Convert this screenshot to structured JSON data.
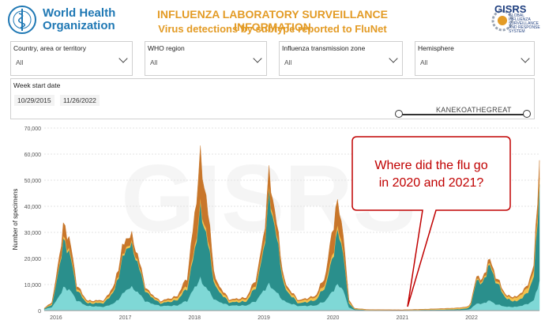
{
  "header": {
    "who_logo_text": "World Health\nOrganization",
    "title_line1": "INFLUENZA LABORATORY SURVEILLANCE INFORMATION",
    "title_line2": "Virus detections by subtype reported to FluNet",
    "gisrs_text": "GISRS",
    "gisrs_sub": "GLOBAL INFLUENZA SURVEILLANCE AND RESPONSE SYSTEM"
  },
  "filters": [
    {
      "label": "Country, area or territory",
      "value": "All"
    },
    {
      "label": "WHO region",
      "value": "All"
    },
    {
      "label": "Influenza transmission zone",
      "value": "All"
    },
    {
      "label": "Hemisphere",
      "value": "All"
    }
  ],
  "week": {
    "label": "Week start date",
    "start": "10/29/2015",
    "end": "11/26/2022",
    "user_watermark": "KANEKOATHEGREAT"
  },
  "callout": {
    "line1": "Where did the flu go",
    "line2": "in 2020 and 2021?"
  },
  "colors": {
    "title_orange": "#e39b25",
    "who_blue": "#1f78b4",
    "callout_red": "#c00000"
  },
  "chart_data": {
    "type": "area",
    "ylabel": "Number of specimens",
    "xlabel": "",
    "ylim": [
      0,
      70000
    ],
    "yticks": [
      "0",
      "10,000",
      "20,000",
      "30,000",
      "40,000",
      "50,000",
      "60,000",
      "70,000"
    ],
    "xticks": [
      "2016",
      "2017",
      "2018",
      "2019",
      "2020",
      "2021",
      "2022"
    ],
    "x_range": [
      2015.83,
      2022.98
    ],
    "grid": true,
    "watermark": "GISRS",
    "series": [
      {
        "color": "#7fd8d6",
        "x": [
          2015.83,
          2015.95,
          2016.05,
          2016.12,
          2016.2,
          2016.3,
          2016.45,
          2016.7,
          2016.85,
          2016.95,
          2017.05,
          2017.15,
          2017.3,
          2017.5,
          2017.75,
          2017.9,
          2018.0,
          2018.08,
          2018.15,
          2018.3,
          2018.5,
          2018.75,
          2018.9,
          2019.0,
          2019.08,
          2019.15,
          2019.3,
          2019.5,
          2019.75,
          2019.9,
          2020.0,
          2020.08,
          2020.15,
          2020.22,
          2020.3,
          2020.5,
          2020.8,
          2021.0,
          2021.3,
          2021.6,
          2021.8,
          2021.95,
          2022.0,
          2022.08,
          2022.15,
          2022.25,
          2022.35,
          2022.5,
          2022.65,
          2022.8,
          2022.9,
          2022.98
        ],
        "values": [
          500,
          1500,
          6000,
          9000,
          8000,
          4000,
          1800,
          1500,
          3000,
          6000,
          9000,
          8000,
          3500,
          1800,
          2000,
          4000,
          9000,
          12000,
          9500,
          4000,
          2000,
          2000,
          4000,
          8000,
          10000,
          8000,
          3500,
          1800,
          2000,
          4000,
          8000,
          10000,
          8000,
          1500,
          300,
          100,
          100,
          100,
          150,
          200,
          250,
          400,
          1000,
          3000,
          2500,
          4000,
          2500,
          1500,
          1500,
          2500,
          4000,
          12000
        ]
      },
      {
        "color": "#2a8f8c",
        "x": [
          2015.83,
          2015.95,
          2016.05,
          2016.12,
          2016.2,
          2016.3,
          2016.45,
          2016.7,
          2016.85,
          2016.95,
          2017.05,
          2017.15,
          2017.3,
          2017.5,
          2017.75,
          2017.9,
          2018.0,
          2018.08,
          2018.15,
          2018.3,
          2018.5,
          2018.75,
          2018.9,
          2019.0,
          2019.08,
          2019.15,
          2019.3,
          2019.5,
          2019.75,
          2019.9,
          2020.0,
          2020.08,
          2020.15,
          2020.22,
          2020.3,
          2020.5,
          2020.8,
          2021.0,
          2021.3,
          2021.6,
          2021.8,
          2021.95,
          2022.0,
          2022.08,
          2022.15,
          2022.25,
          2022.35,
          2022.5,
          2022.65,
          2022.8,
          2022.9,
          2022.98
        ],
        "values": [
          200,
          1000,
          12000,
          18000,
          14000,
          4000,
          1000,
          1500,
          5000,
          13000,
          17000,
          13000,
          3500,
          1000,
          2000,
          5000,
          14000,
          26000,
          23000,
          5000,
          1200,
          1500,
          6000,
          16000,
          34000,
          26000,
          5000,
          1000,
          2000,
          6000,
          14000,
          21000,
          14000,
          2000,
          300,
          100,
          100,
          100,
          150,
          200,
          300,
          500,
          2000,
          10000,
          7000,
          14000,
          9000,
          3000,
          2000,
          4000,
          9000,
          38000
        ]
      },
      {
        "color": "#f2c14e",
        "x": [
          2015.83,
          2016.12,
          2016.45,
          2017.15,
          2017.5,
          2018.08,
          2018.5,
          2019.08,
          2019.5,
          2020.08,
          2020.3,
          2021.0,
          2022.08,
          2022.25,
          2022.5,
          2022.98
        ],
        "values": [
          100,
          1000,
          600,
          800,
          500,
          1500,
          700,
          1200,
          800,
          1500,
          200,
          50,
          500,
          700,
          800,
          2500
        ]
      },
      {
        "color": "#c8762a",
        "x": [
          2015.83,
          2015.95,
          2016.05,
          2016.12,
          2016.2,
          2016.3,
          2016.45,
          2016.7,
          2016.85,
          2016.95,
          2017.05,
          2017.15,
          2017.3,
          2017.5,
          2017.75,
          2017.9,
          2018.0,
          2018.08,
          2018.15,
          2018.3,
          2018.5,
          2018.75,
          2018.9,
          2019.0,
          2019.08,
          2019.15,
          2019.3,
          2019.5,
          2019.75,
          2019.9,
          2020.0,
          2020.08,
          2020.15,
          2020.22,
          2020.3,
          2020.5,
          2020.8,
          2021.0,
          2021.3,
          2021.6,
          2021.8,
          2021.95,
          2022.0,
          2022.08,
          2022.15,
          2022.25,
          2022.35,
          2022.5,
          2022.65,
          2022.8,
          2022.9,
          2022.98
        ],
        "values": [
          100,
          500,
          3000,
          5000,
          4000,
          1000,
          300,
          300,
          1500,
          3500,
          3000,
          2500,
          600,
          300,
          500,
          3000,
          12000,
          18000,
          14000,
          1500,
          300,
          500,
          2000,
          4000,
          7000,
          5000,
          1000,
          300,
          500,
          3000,
          10000,
          9000,
          6000,
          800,
          100,
          50,
          50,
          50,
          50,
          100,
          100,
          150,
          300,
          1000,
          800,
          1500,
          1000,
          400,
          400,
          800,
          2000,
          7000
        ]
      }
    ]
  }
}
